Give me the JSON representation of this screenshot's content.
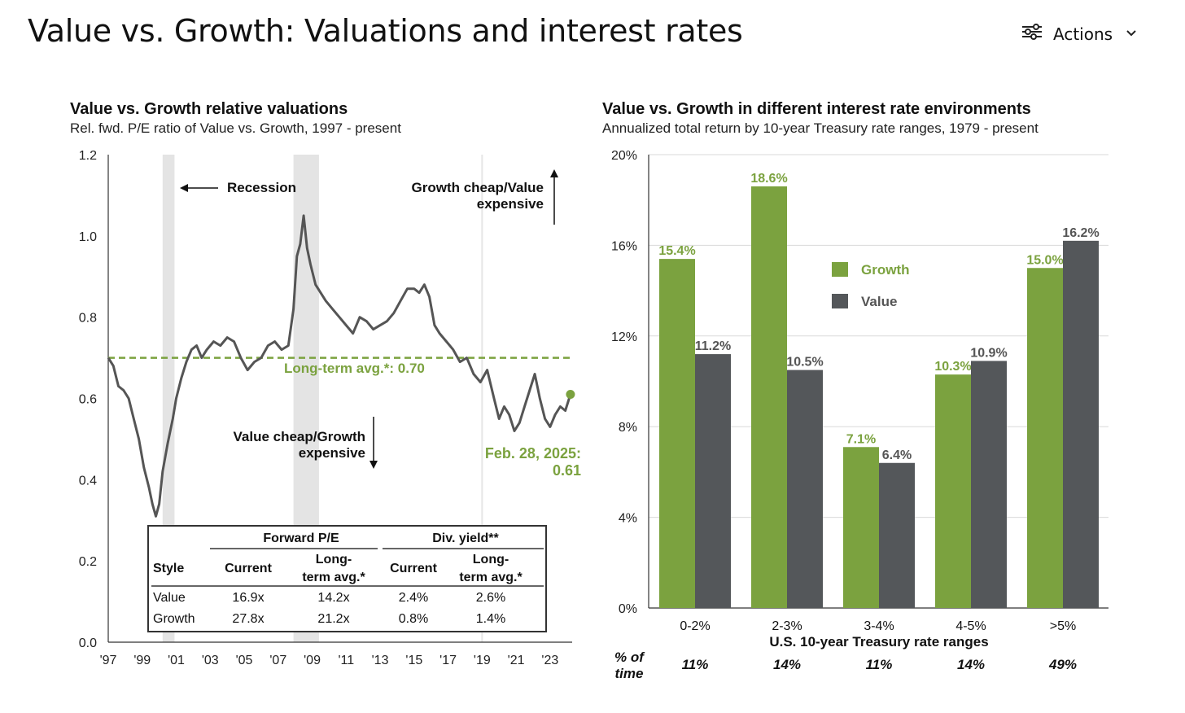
{
  "page": {
    "title": "Value vs. Growth: Valuations and interest rates",
    "actions_label": "Actions"
  },
  "chart_data": [
    {
      "type": "line",
      "title": "Value vs. Growth relative valuations",
      "subtitle": "Rel. fwd. P/E ratio of Value vs. Growth, 1997 - present",
      "x_ticks": [
        "'97",
        "'99",
        "'01",
        "'03",
        "'05",
        "'07",
        "'09",
        "'11",
        "'13",
        "'15",
        "'17",
        "'19",
        "'21",
        "'23"
      ],
      "y_ticks": [
        "1.2",
        "1.0",
        "0.8",
        "0.6",
        "0.4",
        "0.2",
        "0.0"
      ],
      "ylim": [
        0,
        1.2
      ],
      "xlim": [
        1997,
        2024.3
      ],
      "series": [
        {
          "x": [
            1997.0,
            1997.3,
            1997.6,
            1997.9,
            1998.2,
            1998.5,
            1998.8,
            1999.1,
            1999.4,
            1999.6,
            1999.8,
            2000.0,
            2000.2,
            2000.5,
            2000.8,
            2001.0,
            2001.3,
            2001.6,
            2001.9,
            2002.2,
            2002.5,
            2002.8,
            2003.2,
            2003.6,
            2004.0,
            2004.4,
            2004.8,
            2005.2,
            2005.6,
            2006.0,
            2006.4,
            2006.8,
            2007.2,
            2007.6,
            2007.9,
            2008.1,
            2008.3,
            2008.5,
            2008.7,
            2008.9,
            2009.2,
            2009.5,
            2009.8,
            2010.2,
            2010.6,
            2011.0,
            2011.4,
            2011.8,
            2012.2,
            2012.6,
            2013.0,
            2013.4,
            2013.8,
            2014.2,
            2014.6,
            2015.0,
            2015.3,
            2015.6,
            2015.9,
            2016.2,
            2016.5,
            2016.9,
            2017.3,
            2017.7,
            2018.1,
            2018.5,
            2018.9,
            2019.3,
            2019.7,
            2020.0,
            2020.3,
            2020.6,
            2020.9,
            2021.2,
            2021.5,
            2021.8,
            2022.1,
            2022.4,
            2022.7,
            2023.0,
            2023.3,
            2023.6,
            2023.9,
            2024.2
          ],
          "y": [
            0.7,
            0.68,
            0.63,
            0.62,
            0.6,
            0.55,
            0.5,
            0.43,
            0.38,
            0.34,
            0.31,
            0.34,
            0.42,
            0.49,
            0.55,
            0.6,
            0.65,
            0.69,
            0.72,
            0.73,
            0.7,
            0.72,
            0.74,
            0.73,
            0.75,
            0.74,
            0.7,
            0.67,
            0.69,
            0.7,
            0.73,
            0.74,
            0.72,
            0.73,
            0.82,
            0.95,
            0.98,
            1.05,
            0.97,
            0.93,
            0.88,
            0.86,
            0.84,
            0.82,
            0.8,
            0.78,
            0.76,
            0.8,
            0.79,
            0.77,
            0.78,
            0.79,
            0.81,
            0.84,
            0.87,
            0.87,
            0.86,
            0.88,
            0.85,
            0.78,
            0.76,
            0.74,
            0.72,
            0.69,
            0.7,
            0.66,
            0.64,
            0.67,
            0.6,
            0.55,
            0.58,
            0.56,
            0.52,
            0.54,
            0.58,
            0.62,
            0.66,
            0.6,
            0.55,
            0.53,
            0.56,
            0.58,
            0.57,
            0.61
          ]
        }
      ],
      "long_term_avg": 0.7,
      "long_term_avg_label": "Long-term avg.*:  0.70",
      "end_label_line1": "Feb. 28, 2025:",
      "end_label_line2": "0.61",
      "recessions": [
        [
          2000.2,
          2000.9
        ],
        [
          2007.9,
          2009.4
        ]
      ],
      "annotations": {
        "recession": "Recession",
        "growth_cheap_1": "Growth cheap/Value",
        "growth_cheap_2": "expensive",
        "value_cheap_1": "Value cheap/Growth",
        "value_cheap_2": "expensive"
      },
      "table": {
        "group_headers": [
          "Forward P/E",
          "Div. yield**"
        ],
        "columns": [
          "Style",
          "Current",
          "Long-|term avg.*",
          "Current",
          "Long-|term avg.*"
        ],
        "rows": [
          [
            "Value",
            "16.9x",
            "14.2x",
            "2.4%",
            "2.6%"
          ],
          [
            "Growth",
            "27.8x",
            "21.2x",
            "0.8%",
            "1.4%"
          ]
        ]
      },
      "colors": {
        "line": "#555555",
        "avg": "#7BA23F",
        "recession": "#e4e4e4",
        "highlight": "#7BA23F"
      }
    },
    {
      "type": "bar",
      "title": "Value vs. Growth in different interest rate environments",
      "subtitle": "Annualized total return by 10-year Treasury rate ranges, 1979 - present",
      "categories": [
        "0-2%",
        "2-3%",
        "3-4%",
        "4-5%",
        ">5%"
      ],
      "series": [
        {
          "name": "Growth",
          "values": [
            15.4,
            18.6,
            7.1,
            10.3,
            15.0
          ],
          "labels": [
            "15.4%",
            "18.6%",
            "7.1%",
            "10.3%",
            "15.0%"
          ],
          "color": "#7BA23F"
        },
        {
          "name": "Value",
          "values": [
            11.2,
            10.5,
            6.4,
            10.9,
            16.2
          ],
          "labels": [
            "11.2%",
            "10.5%",
            "6.4%",
            "10.9%",
            "16.2%"
          ],
          "color": "#54575A"
        }
      ],
      "y_ticks": [
        "20%",
        "16%",
        "12%",
        "8%",
        "4%",
        "0%"
      ],
      "ylim": [
        0,
        20
      ],
      "xlabel": "U.S. 10-year Treasury rate ranges",
      "pct_time_label_1": "% of",
      "pct_time_label_2": "time",
      "pct_time": [
        "11%",
        "14%",
        "11%",
        "14%",
        "49%"
      ]
    }
  ]
}
